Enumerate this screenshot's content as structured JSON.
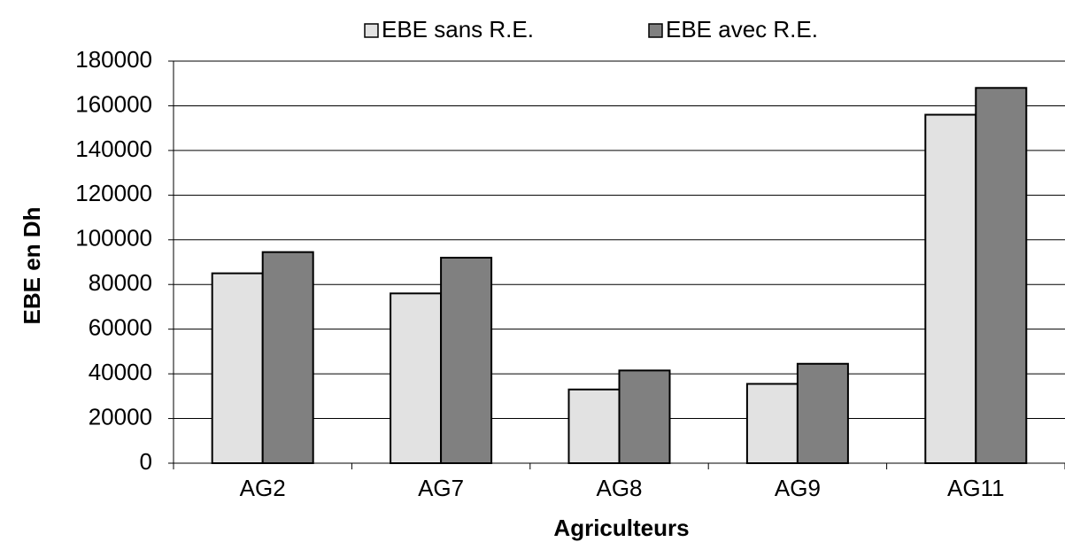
{
  "chart_data": {
    "type": "bar",
    "x_label": "Agriculteurs",
    "y_label": "EBE en Dh",
    "categories": [
      "AG2",
      "AG7",
      "AG8",
      "AG9",
      "AG11"
    ],
    "series": [
      {
        "name": "EBE sans R.E.",
        "color": "#e2e2e2",
        "values": [
          85000,
          76000,
          33000,
          35500,
          156000
        ]
      },
      {
        "name": "EBE avec R.E.",
        "color": "#808080",
        "values": [
          94500,
          92000,
          41500,
          44500,
          168000
        ]
      }
    ],
    "ylim": [
      0,
      180000
    ],
    "yticks": [
      0,
      20000,
      40000,
      60000,
      80000,
      100000,
      120000,
      140000,
      160000,
      180000
    ],
    "grid": true,
    "legend": "top"
  }
}
